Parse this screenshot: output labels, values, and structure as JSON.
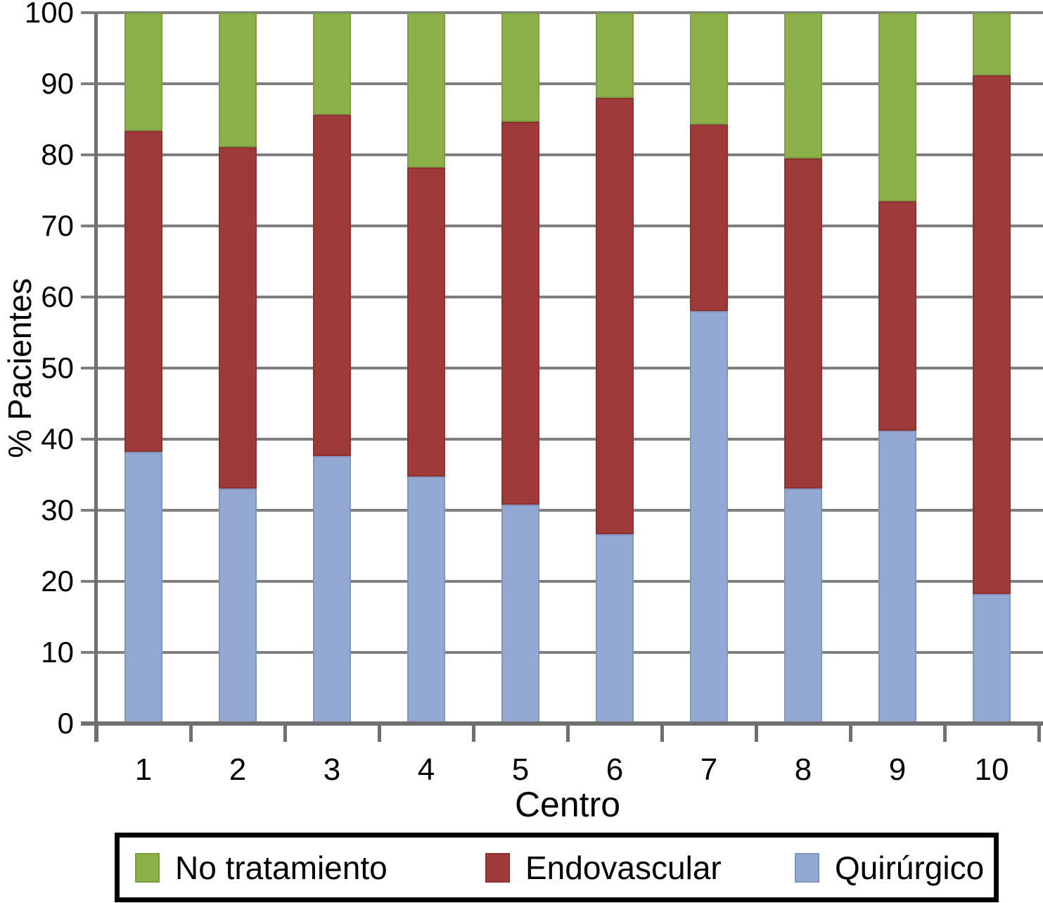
{
  "chart_data": {
    "type": "bar",
    "stacked": true,
    "title": "",
    "xlabel": "Centro",
    "ylabel": "% Pacientes",
    "ylim": [
      0,
      100
    ],
    "yticks": [
      0,
      10,
      20,
      30,
      40,
      50,
      60,
      70,
      80,
      90,
      100
    ],
    "categories": [
      "1",
      "2",
      "3",
      "4",
      "5",
      "6",
      "7",
      "8",
      "9",
      "10"
    ],
    "series": [
      {
        "name": "Quirúrgico",
        "color": "#94A8D4",
        "values": [
          38.2,
          33.1,
          37.6,
          34.8,
          30.8,
          26.6,
          58.0,
          33.1,
          41.2,
          18.2
        ]
      },
      {
        "name": "Endovascular",
        "color": "#9E3A38",
        "values": [
          45.2,
          48.0,
          48.0,
          43.4,
          53.9,
          61.4,
          26.3,
          46.4,
          32.3,
          73.0
        ]
      },
      {
        "name": "No tratamiento",
        "color": "#8CB04A",
        "values": [
          16.6,
          18.9,
          14.4,
          21.8,
          15.3,
          12.0,
          15.7,
          20.5,
          26.5,
          8.8
        ]
      }
    ],
    "legend": {
      "position": "bottom-boxed",
      "items": [
        "No tratamiento",
        "Endovascular",
        "Quirúrgico"
      ]
    },
    "grid": true,
    "axis_colors": {
      "gridline": "#7F7F7F",
      "axis": "#6F6F6F",
      "text": "#000000",
      "background": "#FFFFFF",
      "legend_border": "#000000"
    }
  }
}
